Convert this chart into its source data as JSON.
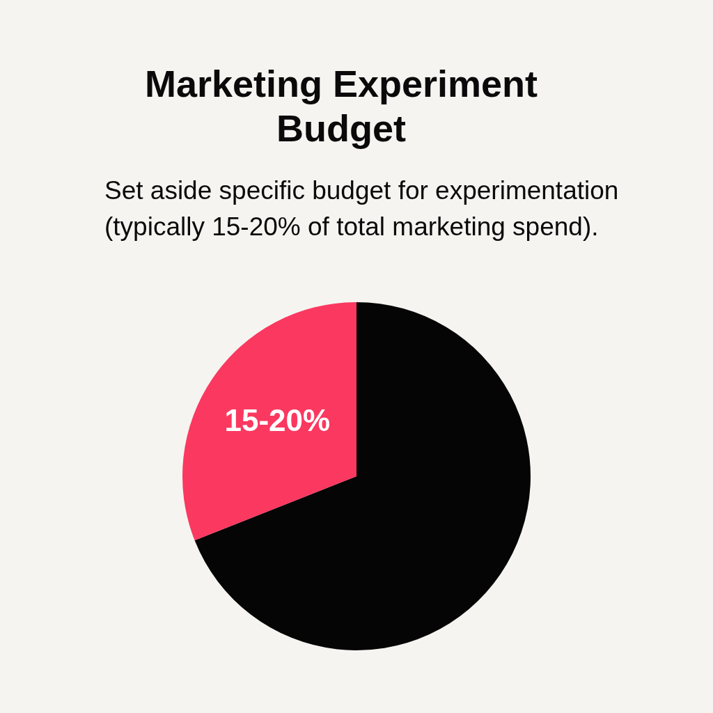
{
  "chart_data": {
    "type": "pie",
    "title": "Marketing Experiment Budget",
    "subtitle": "Set aside specific budget for experimentation (typically 15-20% of total marketing spend).",
    "categories": [
      null,
      null
    ],
    "values": [
      69,
      31
    ],
    "colors": [
      "#050505",
      "#fb3860"
    ],
    "annotations": [
      "15-20%"
    ],
    "legend": false
  }
}
